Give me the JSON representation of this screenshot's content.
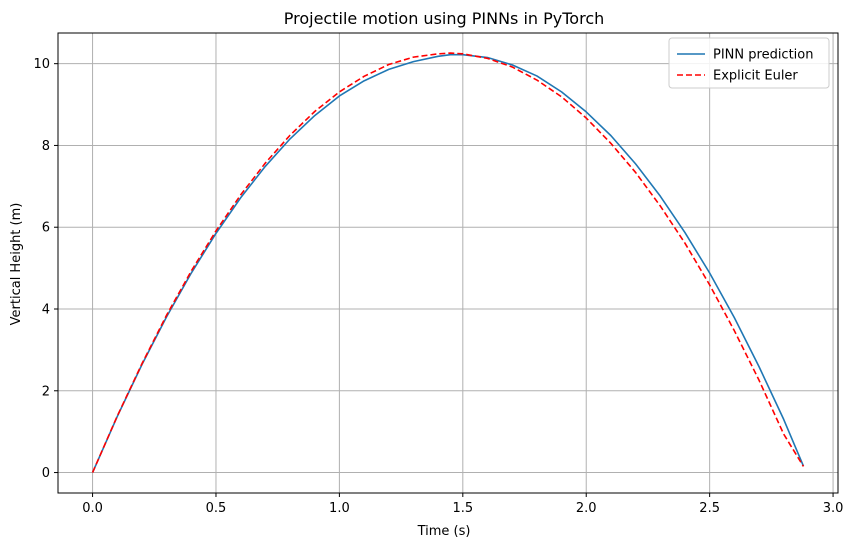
{
  "chart_data": {
    "type": "line",
    "title": "Projectile motion using PINNs in PyTorch",
    "xlabel": "Time (s)",
    "ylabel": "Vertical Height (m)",
    "xlim": [
      -0.14,
      3.02
    ],
    "ylim": [
      -0.5,
      10.75
    ],
    "xticks": [
      0.0,
      0.5,
      1.0,
      1.5,
      2.0,
      2.5,
      3.0
    ],
    "xtick_labels": [
      "0.0",
      "0.5",
      "1.0",
      "1.5",
      "2.0",
      "2.5",
      "3.0"
    ],
    "yticks": [
      0,
      2,
      4,
      6,
      8,
      10
    ],
    "ytick_labels": [
      "0",
      "2",
      "4",
      "6",
      "8",
      "10"
    ],
    "grid": true,
    "legend_position": "top-right",
    "series": [
      {
        "name": "PINN prediction",
        "color": "#1f77b4",
        "style": "solid",
        "x": [
          0.0,
          0.1,
          0.2,
          0.3,
          0.4,
          0.5,
          0.6,
          0.7,
          0.8,
          0.9,
          1.0,
          1.1,
          1.2,
          1.3,
          1.4,
          1.45,
          1.5,
          1.6,
          1.7,
          1.8,
          1.9,
          2.0,
          2.1,
          2.2,
          2.3,
          2.4,
          2.5,
          2.6,
          2.7,
          2.8,
          2.88
        ],
        "y": [
          0.0,
          1.37,
          2.64,
          3.81,
          4.88,
          5.85,
          6.72,
          7.49,
          8.16,
          8.73,
          9.21,
          9.58,
          9.86,
          10.05,
          10.18,
          10.22,
          10.22,
          10.15,
          9.97,
          9.7,
          9.31,
          8.82,
          8.24,
          7.55,
          6.76,
          5.87,
          4.88,
          3.79,
          2.59,
          1.3,
          0.16
        ]
      },
      {
        "name": "Explicit Euler",
        "color": "#ff0000",
        "style": "dashed",
        "x": [
          0.0,
          0.1,
          0.2,
          0.3,
          0.4,
          0.5,
          0.6,
          0.7,
          0.8,
          0.9,
          1.0,
          1.1,
          1.2,
          1.3,
          1.4,
          1.45,
          1.5,
          1.6,
          1.7,
          1.8,
          1.9,
          2.0,
          2.1,
          2.2,
          2.3,
          2.4,
          2.5,
          2.6,
          2.7,
          2.8,
          2.88
        ],
        "y": [
          0.0,
          1.38,
          2.66,
          3.85,
          4.93,
          5.91,
          6.79,
          7.57,
          8.25,
          8.83,
          9.31,
          9.69,
          9.98,
          10.16,
          10.24,
          10.26,
          10.24,
          10.13,
          9.92,
          9.6,
          9.19,
          8.67,
          8.05,
          7.34,
          6.52,
          5.61,
          4.59,
          3.47,
          2.26,
          0.94,
          0.15
        ]
      }
    ]
  }
}
